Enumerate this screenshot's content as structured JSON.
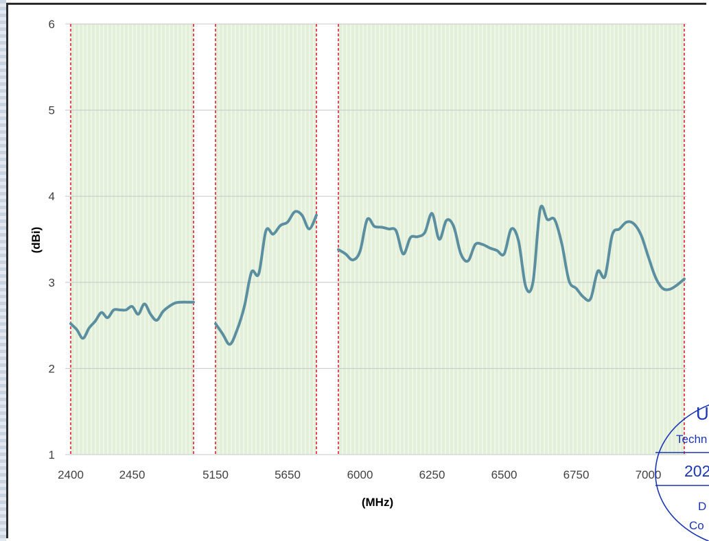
{
  "chart_data": {
    "type": "line",
    "title": "",
    "xlabel": "(MHz)",
    "ylabel": "(dBi)",
    "ylim": [
      1,
      6
    ],
    "yticks": [
      "1",
      "2",
      "3",
      "4",
      "5",
      "6"
    ],
    "xticks": [
      "2400",
      "2450",
      "5150",
      "5650",
      "6000",
      "6250",
      "6500",
      "6750",
      "7000"
    ],
    "grid": true,
    "legend": "none",
    "series_color": "#5b8fa0",
    "band_fill_color": "#e2f0d9",
    "band_edge_color": "#e0001b",
    "bands": [
      {
        "from": "2400",
        "to": "2500"
      },
      {
        "from": "5150",
        "to": "5850"
      },
      {
        "from": "5925",
        "to": "7125"
      }
    ],
    "series": [
      {
        "segment": "2400-2500 MHz",
        "x": [
          2400,
          2405,
          2410,
          2415,
          2420,
          2425,
          2430,
          2435,
          2440,
          2445,
          2450,
          2455,
          2460,
          2465,
          2470,
          2475,
          2480,
          2485,
          2490,
          2495,
          2500
        ],
        "values": [
          2.52,
          2.45,
          2.35,
          2.47,
          2.55,
          2.65,
          2.59,
          2.68,
          2.68,
          2.68,
          2.72,
          2.63,
          2.75,
          2.63,
          2.56,
          2.66,
          2.72,
          2.76,
          2.77,
          2.77,
          2.77
        ]
      },
      {
        "segment": "5150-5850 MHz",
        "x": [
          5150,
          5200,
          5250,
          5300,
          5350,
          5400,
          5450,
          5500,
          5550,
          5600,
          5650,
          5700,
          5750,
          5800,
          5850
        ],
        "values": [
          2.52,
          2.4,
          2.28,
          2.45,
          2.72,
          3.12,
          3.1,
          3.6,
          3.56,
          3.66,
          3.7,
          3.82,
          3.78,
          3.62,
          3.78
        ]
      },
      {
        "segment": "5925-7125 MHz",
        "x": [
          5925,
          5950,
          5975,
          6000,
          6025,
          6050,
          6075,
          6100,
          6125,
          6150,
          6175,
          6200,
          6225,
          6250,
          6275,
          6300,
          6325,
          6350,
          6375,
          6400,
          6425,
          6450,
          6475,
          6500,
          6525,
          6550,
          6575,
          6600,
          6625,
          6650,
          6675,
          6700,
          6725,
          6750,
          6775,
          6800,
          6825,
          6850,
          6875,
          6900,
          6925,
          6950,
          6975,
          7000,
          7025,
          7050,
          7075,
          7100,
          7125
        ],
        "values": [
          3.38,
          3.33,
          3.26,
          3.36,
          3.73,
          3.65,
          3.64,
          3.62,
          3.6,
          3.33,
          3.52,
          3.53,
          3.58,
          3.8,
          3.5,
          3.72,
          3.65,
          3.33,
          3.25,
          3.44,
          3.44,
          3.4,
          3.37,
          3.33,
          3.62,
          3.48,
          2.95,
          3.0,
          3.85,
          3.73,
          3.73,
          3.45,
          3.02,
          2.93,
          2.83,
          2.81,
          3.13,
          3.07,
          3.55,
          3.62,
          3.7,
          3.68,
          3.55,
          3.3,
          3.06,
          2.93,
          2.92,
          2.97,
          3.04
        ]
      }
    ]
  },
  "stamp": {
    "text_lines": [
      "U",
      "Techn",
      "202",
      "D",
      "Co"
    ],
    "color": "#1a35b5"
  }
}
